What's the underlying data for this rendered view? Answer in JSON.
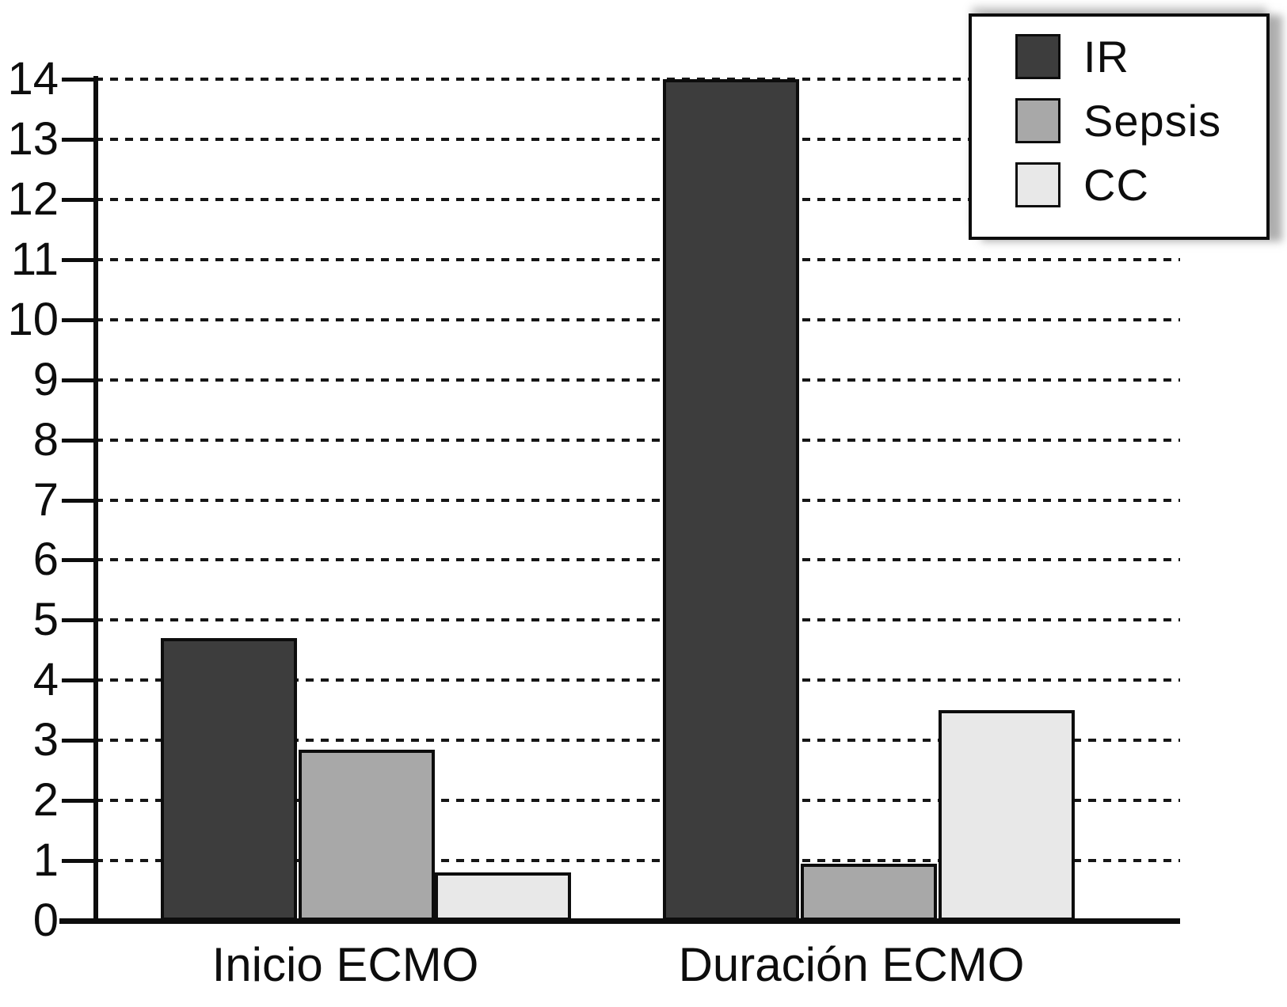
{
  "chart_data": {
    "type": "bar",
    "categories": [
      "Inicio ECMO",
      "Duración ECMO"
    ],
    "series": [
      {
        "name": "IR",
        "color": "#3d3d3d",
        "values": [
          4.7,
          14.0
        ]
      },
      {
        "name": "Sepsis",
        "color": "#a8a8a8",
        "values": [
          2.85,
          0.95
        ]
      },
      {
        "name": "CC",
        "color": "#e8e8e8",
        "values": [
          0.8,
          3.5
        ]
      }
    ],
    "title": "",
    "xlabel": "",
    "ylabel": "",
    "ylim": [
      0,
      14
    ],
    "yticks": [
      0,
      1,
      2,
      3,
      4,
      5,
      6,
      7,
      8,
      9,
      10,
      11,
      12,
      13,
      14
    ],
    "grid": "horizontal-dashed",
    "legend": {
      "position": "top-right",
      "entries": [
        "IR",
        "Sepsis",
        "CC"
      ]
    },
    "axis_color": "#0d0d0d",
    "background": "#ffffff"
  }
}
